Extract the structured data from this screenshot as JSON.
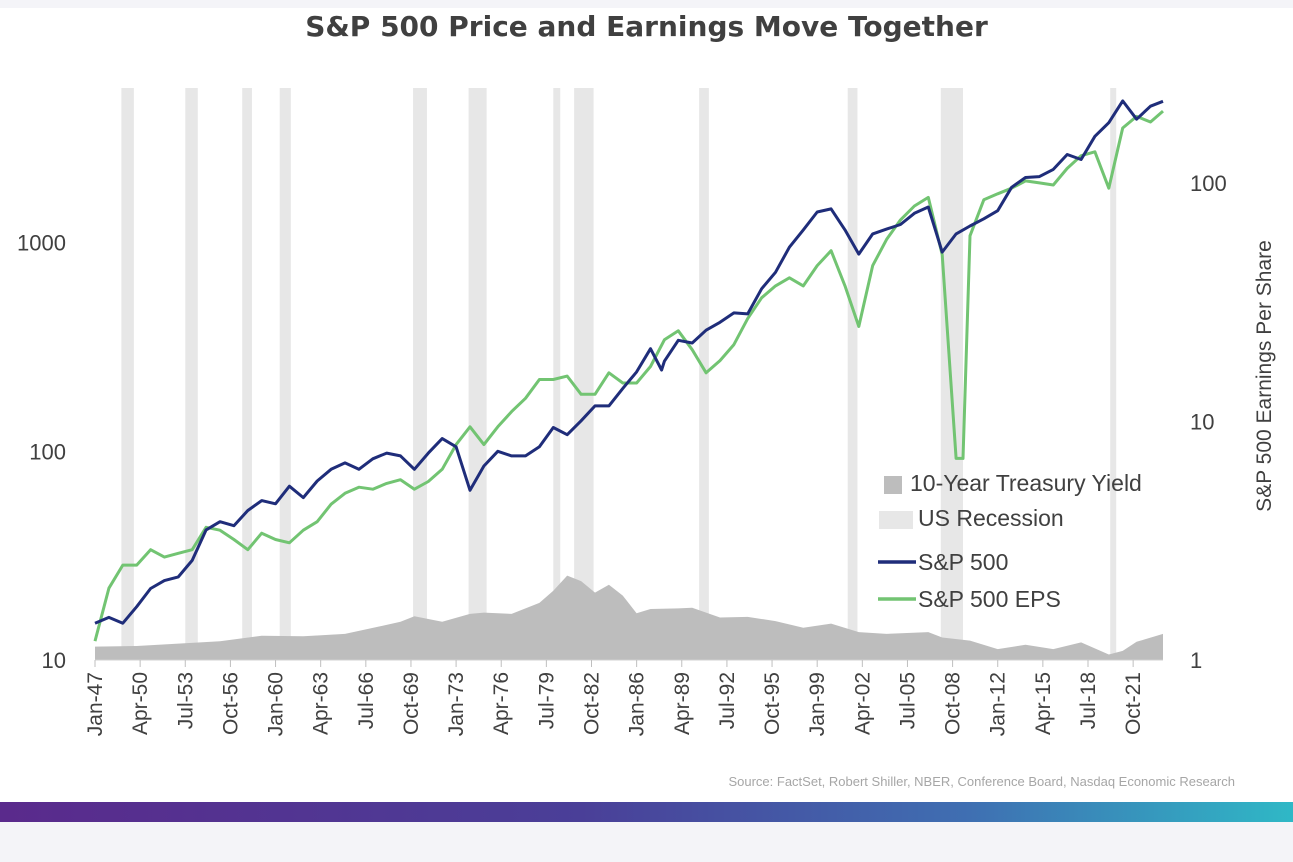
{
  "chart_data": {
    "type": "line",
    "title": "S&P 500 Price and Earnings Move Together",
    "source": "Source: FactSet, Robert Shiller, NBER, Conference Board, Nasdaq Economic Research",
    "y_left": {
      "scale": "log",
      "ticks": [
        "10",
        "100",
        "1000"
      ],
      "range": [
        10,
        5500
      ]
    },
    "y_right": {
      "scale": "log",
      "label": "S&P 500 Earnings Per Share",
      "ticks": [
        "1",
        "10",
        "100"
      ],
      "range": [
        1,
        250
      ]
    },
    "x_ticks": [
      "Jan-47",
      "Apr-50",
      "Jul-53",
      "Oct-56",
      "Jan-60",
      "Apr-63",
      "Jul-66",
      "Oct-69",
      "Jan-73",
      "Apr-76",
      "Jul-79",
      "Oct-82",
      "Jan-86",
      "Apr-89",
      "Jul-92",
      "Oct-95",
      "Jan-99",
      "Apr-02",
      "Jul-05",
      "Oct-08",
      "Jan-12",
      "Apr-15",
      "Jul-18",
      "Oct-21"
    ],
    "x_range": [
      1947.0,
      2023.9
    ],
    "legend": [
      "10-Year Treasury Yield",
      "US Recession",
      "S&P 500",
      "S&P 500 EPS"
    ],
    "legend_position": "bottom-right",
    "colors": {
      "sp500": "#1f2d7a",
      "eps": "#72c472",
      "treasury": "#bdbdbd",
      "recession": "#e7e7e7"
    },
    "recessions": [
      [
        1948.9,
        1949.8
      ],
      [
        1953.5,
        1954.4
      ],
      [
        1957.6,
        1958.3
      ],
      [
        1960.3,
        1961.1
      ],
      [
        1969.9,
        1970.9
      ],
      [
        1973.9,
        1975.2
      ],
      [
        1980.0,
        1980.5
      ],
      [
        1981.5,
        1982.9
      ],
      [
        1990.5,
        1991.2
      ],
      [
        2001.2,
        2001.9
      ],
      [
        2007.9,
        2009.5
      ],
      [
        2020.1,
        2020.3
      ]
    ],
    "sp500": {
      "x": [
        1947,
        1948,
        1949,
        1950,
        1951,
        1952,
        1953,
        1954,
        1955,
        1956,
        1957,
        1958,
        1959,
        1960,
        1961,
        1962,
        1963,
        1964,
        1965,
        1966,
        1967,
        1968,
        1969,
        1970,
        1971,
        1972,
        1973,
        1974,
        1975,
        1976,
        1977,
        1978,
        1979,
        1980,
        1981,
        1982,
        1983,
        1984,
        1985,
        1986,
        1987,
        1987.8,
        1988,
        1989,
        1990,
        1991,
        1992,
        1993,
        1994,
        1995,
        1996,
        1997,
        1998,
        1999,
        2000,
        2001,
        2002,
        2003,
        2004,
        2005,
        2006,
        2007,
        2008,
        2009,
        2010,
        2011,
        2012,
        2013,
        2014,
        2015,
        2016,
        2017,
        2018,
        2019,
        2020,
        2021,
        2022,
        2023,
        2023.9
      ],
      "values": [
        15,
        16,
        15,
        18,
        22,
        24,
        25,
        30,
        42,
        46,
        44,
        52,
        58,
        56,
        68,
        60,
        72,
        82,
        88,
        82,
        92,
        98,
        95,
        82,
        98,
        115,
        105,
        65,
        85,
        100,
        95,
        95,
        105,
        130,
        120,
        140,
        165,
        165,
        200,
        240,
        310,
        245,
        270,
        340,
        330,
        380,
        415,
        460,
        455,
        600,
        720,
        950,
        1150,
        1400,
        1450,
        1150,
        880,
        1100,
        1160,
        1220,
        1380,
        1480,
        900,
        1100,
        1200,
        1300,
        1420,
        1840,
        2050,
        2070,
        2240,
        2640,
        2500,
        3230,
        3750,
        4770,
        3900,
        4500,
        4750
      ]
    },
    "eps": {
      "x": [
        1947,
        1948,
        1949,
        1950,
        1951,
        1952,
        1953,
        1954,
        1955,
        1956,
        1957,
        1958,
        1959,
        1960,
        1961,
        1962,
        1963,
        1964,
        1965,
        1966,
        1967,
        1968,
        1969,
        1970,
        1971,
        1972,
        1973,
        1974,
        1975,
        1976,
        1977,
        1978,
        1979,
        1980,
        1981,
        1982,
        1983,
        1984,
        1985,
        1986,
        1987,
        1988,
        1989,
        1990,
        1991,
        1992,
        1993,
        1994,
        1995,
        1996,
        1997,
        1998,
        1999,
        2000,
        2001,
        2002,
        2003,
        2004,
        2005,
        2006,
        2007,
        2008,
        2009,
        2009.5,
        2010,
        2011,
        2012,
        2013,
        2014,
        2015,
        2016,
        2017,
        2018,
        2019,
        2020,
        2021,
        2022,
        2023,
        2023.9
      ],
      "values": [
        1.2,
        2.0,
        2.5,
        2.5,
        2.9,
        2.7,
        2.8,
        2.9,
        3.6,
        3.5,
        3.2,
        2.9,
        3.4,
        3.2,
        3.1,
        3.5,
        3.8,
        4.5,
        5.0,
        5.3,
        5.2,
        5.5,
        5.7,
        5.2,
        5.6,
        6.3,
        8.0,
        9.5,
        8.0,
        9.5,
        11,
        12.5,
        15,
        15,
        15.5,
        13,
        13,
        16,
        14.5,
        14.5,
        17,
        22,
        24,
        20,
        16,
        18,
        21,
        27,
        33,
        37,
        40,
        37,
        45,
        52,
        37,
        25,
        45,
        58,
        70,
        80,
        87,
        50,
        7,
        7,
        60,
        85,
        90,
        95,
        102,
        100,
        98,
        115,
        130,
        135,
        95,
        170,
        190,
        180,
        200
      ]
    },
    "treasury": {
      "x": [
        1947,
        1950,
        1953,
        1956,
        1959,
        1962,
        1965,
        1966,
        1969,
        1970,
        1972,
        1974,
        1975,
        1977,
        1979,
        1980,
        1981,
        1982,
        1983,
        1984,
        1985,
        1986,
        1987,
        1989,
        1990,
        1992,
        1994,
        1996,
        1998,
        2000,
        2002,
        2004,
        2007,
        2008,
        2010,
        2012,
        2014,
        2016,
        2018,
        2020,
        2021,
        2022,
        2023.9
      ],
      "values": [
        2.2,
        2.3,
        2.7,
        3.1,
        4.0,
        3.9,
        4.3,
        4.8,
        6.3,
        7.2,
        6.3,
        7.6,
        7.8,
        7.6,
        9.4,
        11.4,
        13.9,
        13.0,
        11.1,
        12.4,
        10.6,
        7.7,
        8.4,
        8.5,
        8.6,
        7.0,
        7.1,
        6.4,
        5.3,
        6.0,
        4.6,
        4.3,
        4.6,
        3.7,
        3.2,
        1.8,
        2.5,
        1.8,
        2.9,
        0.9,
        1.5,
        3.0,
        4.3
      ]
    }
  }
}
